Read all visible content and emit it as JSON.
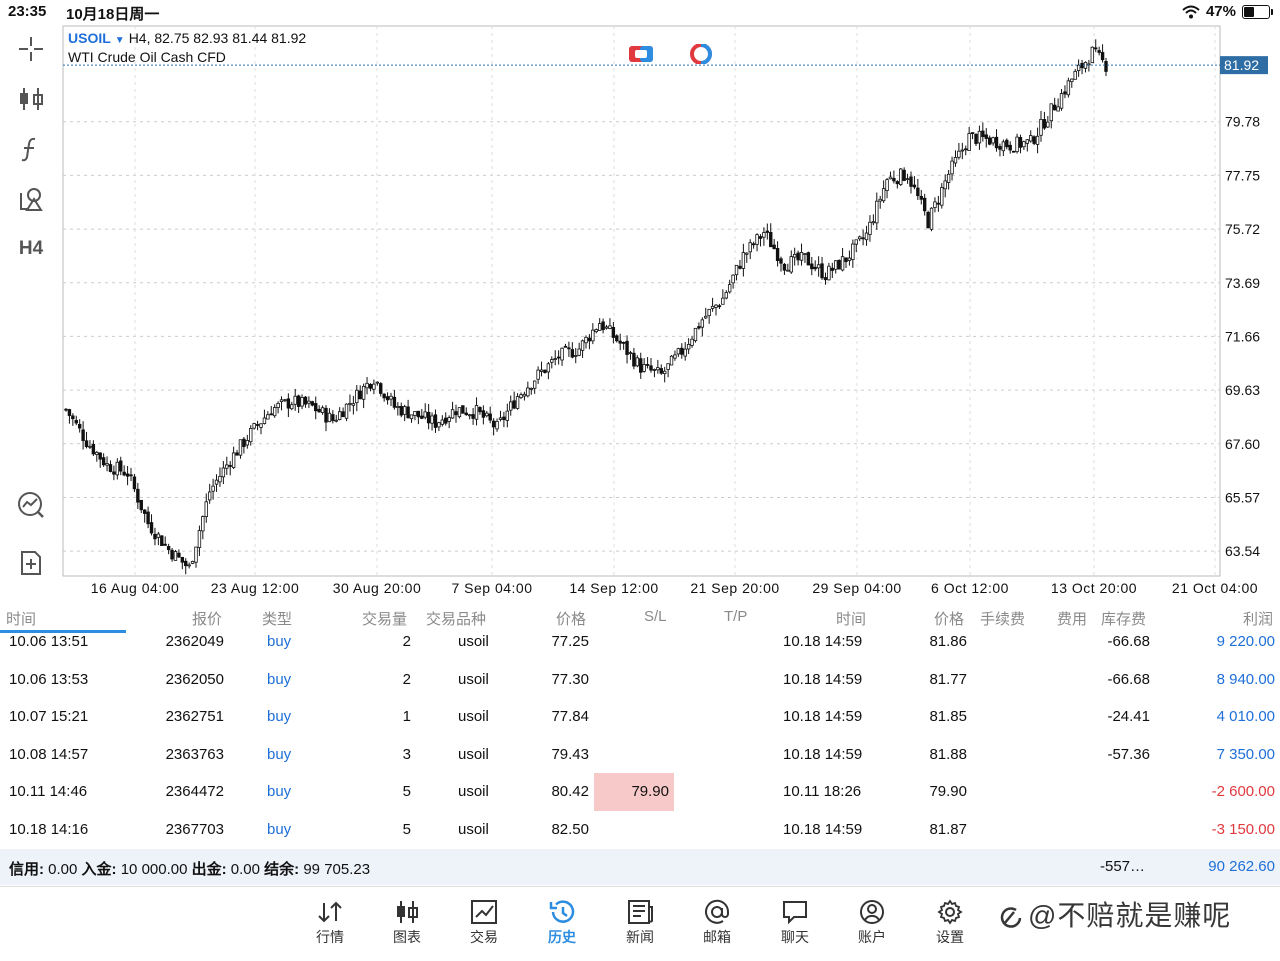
{
  "status": {
    "time": "23:35",
    "date": "10月18日周一",
    "battery": "47%",
    "battery_level": 0.47
  },
  "chart": {
    "symbol": "USOIL",
    "caret": "▼",
    "ohlc": "H4, 82.75 82.93 81.44 81.92",
    "description": "WTI Crude Oil Cash CFD",
    "current_price": "81.92",
    "timeframe": "H4",
    "accent": "#1e6fd9",
    "price_tag_color": "#2f6ea5",
    "y_ticks": [
      "79.78",
      "77.75",
      "75.72",
      "73.69",
      "71.66",
      "69.63",
      "67.60",
      "65.57",
      "63.54"
    ],
    "x_ticks": [
      "16 Aug 04:00",
      "23 Aug 12:00",
      "30 Aug 20:00",
      "7 Sep 04:00",
      "14 Sep 12:00",
      "21 Sep 20:00",
      "29 Sep 04:00",
      "6 Oct 12:00",
      "13 Oct 20:00",
      "21 Oct 04:00"
    ]
  },
  "chart_data": {
    "type": "candlestick",
    "symbol": "USOIL",
    "timeframe": "H4",
    "ylim": [
      62.6,
      83.4
    ],
    "y_ticks": [
      79.78,
      77.75,
      75.72,
      73.69,
      71.66,
      69.63,
      67.6,
      65.57,
      63.54
    ],
    "x_ticks": [
      "16 Aug 04:00",
      "23 Aug 12:00",
      "30 Aug 20:00",
      "7 Sep 04:00",
      "14 Sep 12:00",
      "21 Sep 20:00",
      "29 Sep 04:00",
      "6 Oct 12:00",
      "13 Oct 20:00",
      "21 Oct 04:00"
    ],
    "close_path": [
      {
        "i": 0,
        "c": 68.9
      },
      {
        "i": 6,
        "c": 67.7
      },
      {
        "i": 12,
        "c": 66.8
      },
      {
        "i": 18,
        "c": 66.5
      },
      {
        "i": 24,
        "c": 64.6
      },
      {
        "i": 30,
        "c": 63.6
      },
      {
        "i": 36,
        "c": 62.9
      },
      {
        "i": 42,
        "c": 65.8
      },
      {
        "i": 48,
        "c": 67.0
      },
      {
        "i": 54,
        "c": 68.0
      },
      {
        "i": 60,
        "c": 68.9
      },
      {
        "i": 66,
        "c": 69.2
      },
      {
        "i": 72,
        "c": 69.0
      },
      {
        "i": 78,
        "c": 68.5
      },
      {
        "i": 84,
        "c": 69.3
      },
      {
        "i": 90,
        "c": 70.1
      },
      {
        "i": 96,
        "c": 69.0
      },
      {
        "i": 102,
        "c": 68.7
      },
      {
        "i": 108,
        "c": 68.4
      },
      {
        "i": 114,
        "c": 68.9
      },
      {
        "i": 120,
        "c": 68.8
      },
      {
        "i": 126,
        "c": 68.2
      },
      {
        "i": 132,
        "c": 69.4
      },
      {
        "i": 138,
        "c": 70.2
      },
      {
        "i": 144,
        "c": 70.9
      },
      {
        "i": 150,
        "c": 71.2
      },
      {
        "i": 156,
        "c": 72.2
      },
      {
        "i": 162,
        "c": 71.4
      },
      {
        "i": 168,
        "c": 70.5
      },
      {
        "i": 174,
        "c": 70.2
      },
      {
        "i": 180,
        "c": 71.1
      },
      {
        "i": 186,
        "c": 72.3
      },
      {
        "i": 192,
        "c": 73.1
      },
      {
        "i": 198,
        "c": 74.7
      },
      {
        "i": 204,
        "c": 75.6
      },
      {
        "i": 210,
        "c": 74.4
      },
      {
        "i": 216,
        "c": 74.6
      },
      {
        "i": 222,
        "c": 74.0
      },
      {
        "i": 228,
        "c": 74.6
      },
      {
        "i": 234,
        "c": 75.5
      },
      {
        "i": 240,
        "c": 77.6
      },
      {
        "i": 246,
        "c": 77.8
      },
      {
        "i": 252,
        "c": 76.0
      },
      {
        "i": 258,
        "c": 77.8
      },
      {
        "i": 264,
        "c": 79.2
      },
      {
        "i": 270,
        "c": 79.1
      },
      {
        "i": 276,
        "c": 78.9
      },
      {
        "i": 282,
        "c": 79.0
      },
      {
        "i": 288,
        "c": 80.2
      },
      {
        "i": 294,
        "c": 81.4
      },
      {
        "i": 300,
        "c": 82.4
      },
      {
        "i": 304,
        "c": 81.92
      }
    ],
    "candle_count": 305
  },
  "toolbar": {
    "timeframe_label": "H4"
  },
  "table": {
    "headers": {
      "time": "时间",
      "ticket": "报价",
      "type": "类型",
      "volume": "交易量",
      "symbol": "交易品种",
      "price": "价格",
      "sl": "S/L",
      "tp": "T/P",
      "close_time": "时间",
      "close_price": "价格",
      "commission": "手续费",
      "fee": "费用",
      "swap": "库存费",
      "profit": "利润"
    },
    "rows": [
      {
        "time": "10.06 13:51",
        "ticket": "2362049",
        "type": "buy",
        "volume": "2",
        "symbol": "usoil",
        "price": "77.25",
        "sl": "",
        "tp": "",
        "close_time": "10.18 14:59",
        "close_price": "81.86",
        "swap": "-66.68",
        "profit": "9 220.00",
        "profit_sign": "pos"
      },
      {
        "time": "10.06 13:53",
        "ticket": "2362050",
        "type": "buy",
        "volume": "2",
        "symbol": "usoil",
        "price": "77.30",
        "sl": "",
        "tp": "",
        "close_time": "10.18 14:59",
        "close_price": "81.77",
        "swap": "-66.68",
        "profit": "8 940.00",
        "profit_sign": "pos"
      },
      {
        "time": "10.07 15:21",
        "ticket": "2362751",
        "type": "buy",
        "volume": "1",
        "symbol": "usoil",
        "price": "77.84",
        "sl": "",
        "tp": "",
        "close_time": "10.18 14:59",
        "close_price": "81.85",
        "swap": "-24.41",
        "profit": "4 010.00",
        "profit_sign": "pos"
      },
      {
        "time": "10.08 14:57",
        "ticket": "2363763",
        "type": "buy",
        "volume": "3",
        "symbol": "usoil",
        "price": "79.43",
        "sl": "",
        "tp": "",
        "close_time": "10.18 14:59",
        "close_price": "81.88",
        "swap": "-57.36",
        "profit": "7 350.00",
        "profit_sign": "pos"
      },
      {
        "time": "10.11 14:46",
        "ticket": "2364472",
        "type": "buy",
        "volume": "5",
        "symbol": "usoil",
        "price": "80.42",
        "sl": "79.90",
        "tp": "",
        "close_time": "10.11 18:26",
        "close_price": "79.90",
        "swap": "",
        "profit": "-2 600.00",
        "profit_sign": "neg"
      },
      {
        "time": "10.18 14:16",
        "ticket": "2367703",
        "type": "buy",
        "volume": "5",
        "symbol": "usoil",
        "price": "82.50",
        "sl": "",
        "tp": "",
        "close_time": "10.18 14:59",
        "close_price": "81.87",
        "swap": "",
        "profit": "-3 150.00",
        "profit_sign": "neg"
      }
    ],
    "summary": {
      "credit_label": "信用:",
      "credit": "0.00",
      "deposit_label": "入金:",
      "deposit": "10 000.00",
      "withdraw_label": "出金:",
      "withdraw": "0.00",
      "balance_label": "结余:",
      "balance": "99 705.23",
      "swap_total": "-557…",
      "profit_total": "90 262.60"
    }
  },
  "tabs": [
    {
      "label": "行情",
      "icon": "quotes-icon",
      "active": false
    },
    {
      "label": "图表",
      "icon": "chart-icon",
      "active": false
    },
    {
      "label": "交易",
      "icon": "trade-icon",
      "active": false
    },
    {
      "label": "历史",
      "icon": "history-icon",
      "active": true
    },
    {
      "label": "新闻",
      "icon": "news-icon",
      "active": false
    },
    {
      "label": "邮箱",
      "icon": "mail-icon",
      "active": false
    },
    {
      "label": "聊天",
      "icon": "chat-icon",
      "active": false
    },
    {
      "label": "账户",
      "icon": "account-icon",
      "active": false
    },
    {
      "label": "设置",
      "icon": "settings-icon",
      "active": false
    }
  ],
  "watermark": "@不赔就是赚呢",
  "colors": {
    "active_tab": "#2d8de0",
    "negative": "#e0393e",
    "sl_highlight": "#f8c9c9",
    "summary_bg": "#eef3fa"
  }
}
